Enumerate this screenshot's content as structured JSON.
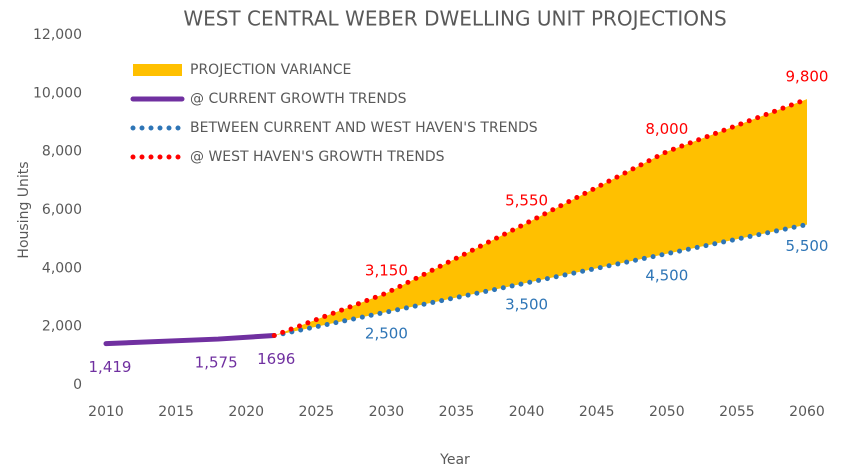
{
  "chart_data": {
    "type": "line",
    "title": "WEST CENTRAL WEBER DWELLING UNIT PROJECTIONS",
    "x_label": "Year",
    "y_label": "Housing Units",
    "xlim": [
      2010,
      2060
    ],
    "xticks": [
      2010,
      2015,
      2020,
      2025,
      2030,
      2035,
      2040,
      2045,
      2050,
      2055,
      2060
    ],
    "ylim": [
      0,
      12000
    ],
    "yticks": [
      0,
      {
        "value": 2000,
        "label": "2,000"
      },
      {
        "value": 4000,
        "label": "4,000"
      },
      {
        "value": 6000,
        "label": "6,000"
      },
      {
        "value": 8000,
        "label": "8,000"
      },
      {
        "value": 10000,
        "label": "10,000"
      },
      {
        "value": 12000,
        "label": "12,000"
      }
    ],
    "area": {
      "name": "PROJECTION VARIANCE",
      "color": "#ffc000"
    },
    "series": [
      {
        "name": "@ CURRENT GROWTH TRENDS",
        "color": "#7030a0",
        "style": "solid",
        "x": [
          2010,
          2018,
          2022
        ],
        "values": [
          1419,
          1575,
          1696
        ],
        "value_labels": [
          "1,419",
          "1,575",
          "1696"
        ]
      },
      {
        "name": "BETWEEN CURRENT AND WEST HAVEN'S TRENDS",
        "color": "#2e75b6",
        "style": "dotted",
        "x": [
          2022,
          2030,
          2040,
          2050,
          2060
        ],
        "values": [
          1696,
          2500,
          3500,
          4500,
          5500
        ],
        "value_labels": [
          null,
          "2,500",
          "3,500",
          "4,500",
          "5,500"
        ]
      },
      {
        "name": "@ WEST HAVEN'S GROWTH TRENDS",
        "color": "#ff0000",
        "style": "dotted",
        "x": [
          2022,
          2030,
          2040,
          2050,
          2060
        ],
        "values": [
          1696,
          3150,
          5550,
          8000,
          9800
        ],
        "value_labels": [
          null,
          "3,150",
          "5,550",
          "8,000",
          "9,800"
        ]
      }
    ]
  }
}
